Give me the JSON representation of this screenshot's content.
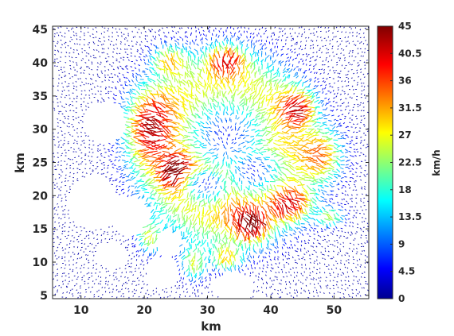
{
  "chart_data": {
    "type": "quiver",
    "title": "",
    "xlabel": "km",
    "ylabel": "km",
    "xlim": [
      5.5,
      55.5
    ],
    "ylim": [
      4.5,
      45.5
    ],
    "xticks": [
      10,
      20,
      30,
      40,
      50
    ],
    "yticks": [
      5,
      10,
      15,
      20,
      25,
      30,
      35,
      40,
      45
    ],
    "colorbar": {
      "label": "km/h",
      "colormap": "jet",
      "range": [
        0,
        45
      ],
      "ticks": [
        "0",
        "4.5",
        "9",
        "13.5",
        "18",
        "22.5",
        "27",
        "31.5",
        "36",
        "40.5",
        "45"
      ]
    },
    "grid": false,
    "fields": {
      "center": [
        33,
        27
      ],
      "slow_core": [
        {
          "x": 33,
          "y": 29,
          "rx": 7,
          "ry": 6
        },
        {
          "x": 37,
          "y": 24,
          "rx": 5,
          "ry": 4
        },
        {
          "x": 30,
          "y": 22,
          "rx": 4,
          "ry": 3
        }
      ],
      "fast_lobes": [
        {
          "x": 24,
          "y": 40,
          "rx": 3,
          "ry": 2.5
        },
        {
          "x": 33,
          "y": 40,
          "rx": 3,
          "ry": 2.5
        },
        {
          "x": 21,
          "y": 31,
          "rx": 4,
          "ry": 6
        },
        {
          "x": 44,
          "y": 33,
          "rx": 3,
          "ry": 3
        },
        {
          "x": 48,
          "y": 26,
          "rx": 3.5,
          "ry": 4
        },
        {
          "x": 43,
          "y": 19,
          "rx": 4,
          "ry": 3
        },
        {
          "x": 49,
          "y": 17,
          "rx": 2.5,
          "ry": 1.5
        },
        {
          "x": 21,
          "y": 14,
          "rx": 2,
          "ry": 2.5
        },
        {
          "x": 28,
          "y": 10,
          "rx": 2,
          "ry": 2.5
        },
        {
          "x": 33,
          "y": 11,
          "rx": 2.5,
          "ry": 2
        },
        {
          "x": 37,
          "y": 16,
          "rx": 3,
          "ry": 3
        },
        {
          "x": 26,
          "y": 24,
          "rx": 3,
          "ry": 3
        }
      ],
      "empty_regions": [
        {
          "x": 14,
          "y": 31,
          "rx": 3.5,
          "ry": 3
        },
        {
          "x": 12,
          "y": 19,
          "rx": 4,
          "ry": 4
        },
        {
          "x": 18,
          "y": 17,
          "rx": 3,
          "ry": 3
        },
        {
          "x": 15,
          "y": 11,
          "rx": 2.5,
          "ry": 2
        },
        {
          "x": 23,
          "y": 8.5,
          "rx": 2.5,
          "ry": 2.5
        },
        {
          "x": 34,
          "y": 6.5,
          "rx": 3.5,
          "ry": 2
        },
        {
          "x": 24,
          "y": 13,
          "rx": 2,
          "ry": 2
        }
      ]
    }
  }
}
